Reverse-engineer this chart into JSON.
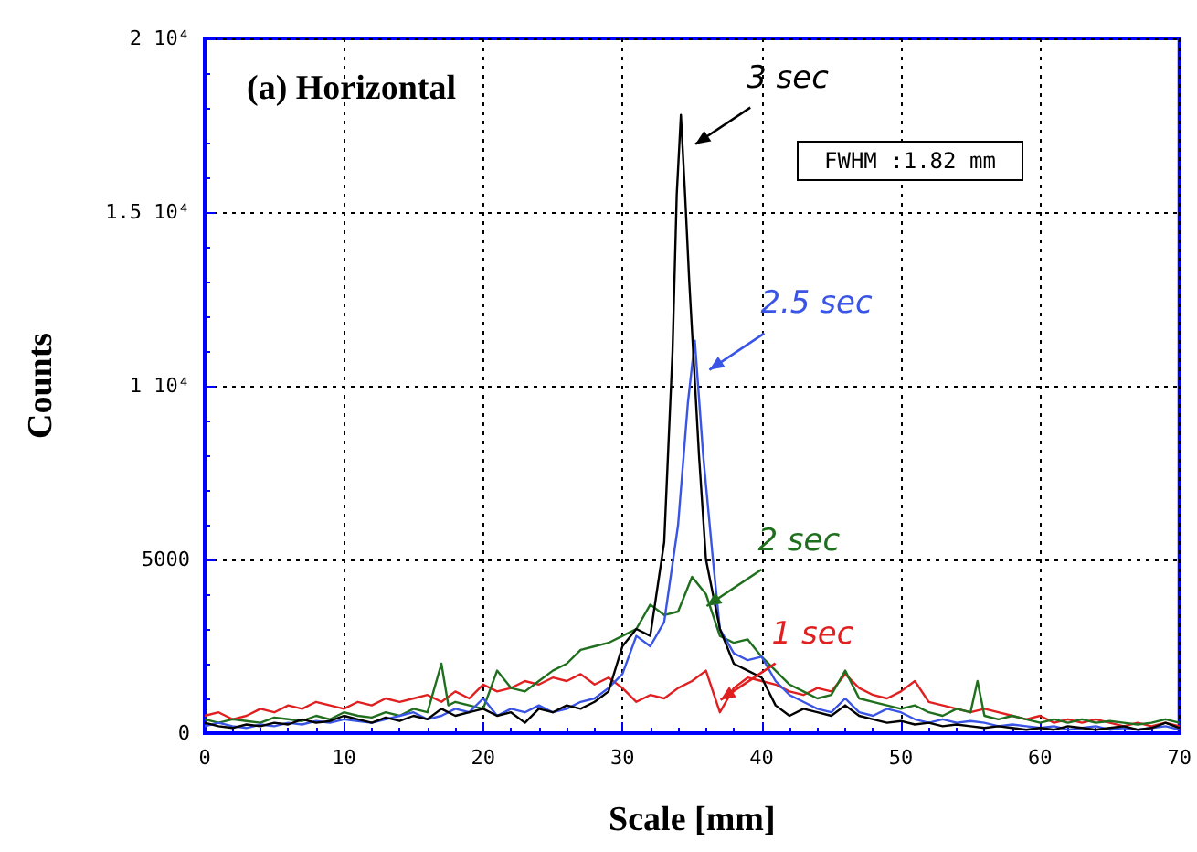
{
  "chart_data": {
    "type": "line",
    "title": "(a) Horizontal",
    "xlabel": "Scale [mm]",
    "ylabel": "Counts",
    "annotations": [
      "FWHM :1.82 mm"
    ],
    "xlim": [
      0,
      70
    ],
    "xticks": [
      0,
      10,
      20,
      30,
      40,
      50,
      60,
      70
    ],
    "ylim": [
      0,
      20000
    ],
    "yticks": [
      0,
      5000,
      {
        "value": 10000,
        "label": "1 10⁴"
      },
      {
        "value": 15000,
        "label": "1.5 10⁴"
      },
      {
        "value": 20000,
        "label": "2 10⁴"
      }
    ],
    "grid": true,
    "marker": "none",
    "line_style": "solid",
    "series": [
      {
        "name": "3 sec",
        "color": "#000000",
        "x": [
          0,
          1,
          2,
          3,
          4,
          5,
          6,
          7,
          8,
          9,
          10,
          11,
          12,
          13,
          14,
          15,
          16,
          17,
          18,
          19,
          20,
          21,
          22,
          23,
          24,
          25,
          26,
          27,
          28,
          29,
          30,
          31,
          32,
          33,
          33.6,
          33.9,
          34.2,
          34.5,
          34.8,
          35.5,
          36,
          37,
          38,
          39,
          40,
          41,
          42,
          43,
          44,
          45,
          46,
          47,
          48,
          49,
          50,
          51,
          52,
          53,
          54,
          55,
          56,
          57,
          58,
          59,
          60,
          61,
          62,
          63,
          64,
          65,
          66,
          67,
          68,
          69,
          70
        ],
        "values": [
          300,
          200,
          150,
          250,
          200,
          300,
          250,
          400,
          300,
          350,
          500,
          400,
          300,
          450,
          350,
          500,
          400,
          700,
          500,
          600,
          700,
          500,
          600,
          300,
          700,
          600,
          800,
          700,
          900,
          1200,
          2500,
          3000,
          2800,
          5500,
          11000,
          15500,
          17800,
          15500,
          13000,
          8000,
          5000,
          3000,
          2000,
          1800,
          1600,
          800,
          500,
          700,
          600,
          500,
          800,
          500,
          400,
          300,
          350,
          250,
          300,
          200,
          250,
          200,
          150,
          200,
          150,
          100,
          150,
          100,
          200,
          150,
          100,
          150,
          200,
          100,
          150,
          300,
          150
        ]
      },
      {
        "name": "2.5 sec",
        "color": "#3a55e6",
        "x": [
          0,
          1,
          2,
          3,
          4,
          5,
          6,
          7,
          8,
          9,
          10,
          11,
          12,
          13,
          14,
          15,
          16,
          17,
          18,
          19,
          20,
          21,
          22,
          23,
          24,
          25,
          26,
          27,
          28,
          29,
          30,
          31,
          32,
          33,
          34,
          34.7,
          35.2,
          35.8,
          36.5,
          37,
          38,
          39,
          40,
          41,
          42,
          43,
          44,
          45,
          46,
          47,
          48,
          49,
          50,
          51,
          52,
          53,
          54,
          55,
          56,
          57,
          58,
          59,
          60,
          61,
          62,
          63,
          64,
          65,
          66,
          67,
          68,
          69,
          70
        ],
        "values": [
          200,
          300,
          200,
          150,
          250,
          200,
          300,
          250,
          350,
          300,
          400,
          350,
          300,
          400,
          500,
          600,
          400,
          500,
          700,
          600,
          1000,
          500,
          700,
          600,
          800,
          600,
          700,
          900,
          1000,
          1300,
          1700,
          2800,
          2500,
          3200,
          6000,
          9500,
          11300,
          8000,
          5000,
          3000,
          2300,
          2100,
          2200,
          1500,
          1100,
          900,
          700,
          600,
          1000,
          600,
          500,
          700,
          600,
          400,
          300,
          400,
          300,
          350,
          300,
          200,
          250,
          200,
          150,
          200,
          100,
          150,
          200,
          100,
          150,
          100,
          150,
          200,
          100
        ]
      },
      {
        "name": "2 sec",
        "color": "#1f6f1f",
        "x": [
          0,
          1,
          2,
          3,
          4,
          5,
          6,
          7,
          8,
          9,
          10,
          11,
          12,
          13,
          14,
          15,
          16,
          17,
          17.5,
          18,
          19,
          20,
          21,
          22,
          23,
          24,
          25,
          26,
          27,
          28,
          29,
          30,
          31,
          32,
          33,
          34,
          35,
          36,
          37,
          38,
          39,
          40,
          41,
          42,
          43,
          44,
          45,
          46,
          47,
          48,
          49,
          50,
          51,
          52,
          53,
          54,
          55,
          55.5,
          56,
          57,
          58,
          59,
          60,
          61,
          62,
          63,
          64,
          65,
          66,
          67,
          68,
          69,
          70
        ],
        "values": [
          400,
          300,
          400,
          350,
          300,
          450,
          400,
          350,
          500,
          400,
          600,
          500,
          450,
          600,
          500,
          700,
          600,
          2000,
          800,
          900,
          800,
          700,
          1800,
          1300,
          1200,
          1500,
          1800,
          2000,
          2400,
          2500,
          2600,
          2800,
          3000,
          3700,
          3400,
          3500,
          4500,
          4000,
          2800,
          2600,
          2700,
          2200,
          1800,
          1400,
          1200,
          1000,
          1100,
          1800,
          1000,
          900,
          800,
          700,
          800,
          600,
          500,
          700,
          600,
          1500,
          500,
          400,
          500,
          400,
          300,
          400,
          300,
          400,
          300,
          350,
          300,
          250,
          300,
          400,
          300
        ]
      },
      {
        "name": "1 sec",
        "color": "#e02020",
        "x": [
          0,
          1,
          2,
          3,
          4,
          5,
          6,
          7,
          8,
          9,
          10,
          11,
          12,
          13,
          14,
          15,
          16,
          17,
          18,
          19,
          20,
          21,
          22,
          23,
          24,
          25,
          26,
          27,
          28,
          29,
          30,
          31,
          32,
          33,
          34,
          35,
          36,
          37,
          38,
          39,
          40,
          41,
          42,
          43,
          44,
          45,
          46,
          47,
          48,
          49,
          50,
          51,
          52,
          53,
          54,
          55,
          56,
          57,
          58,
          59,
          60,
          61,
          62,
          63,
          64,
          65,
          66,
          67,
          68,
          69,
          70
        ],
        "values": [
          500,
          600,
          400,
          500,
          700,
          600,
          800,
          700,
          900,
          800,
          700,
          900,
          800,
          1000,
          900,
          1000,
          1100,
          900,
          1200,
          1000,
          1400,
          1200,
          1300,
          1500,
          1400,
          1600,
          1500,
          1700,
          1400,
          1600,
          1300,
          900,
          1100,
          1000,
          1300,
          1500,
          1800,
          600,
          1300,
          1600,
          1500,
          1400,
          1200,
          1100,
          1300,
          1200,
          1700,
          1300,
          1100,
          1000,
          1200,
          1500,
          900,
          800,
          700,
          600,
          700,
          600,
          500,
          400,
          500,
          300,
          400,
          300,
          400,
          300,
          200,
          300,
          200,
          300,
          200
        ]
      }
    ]
  }
}
